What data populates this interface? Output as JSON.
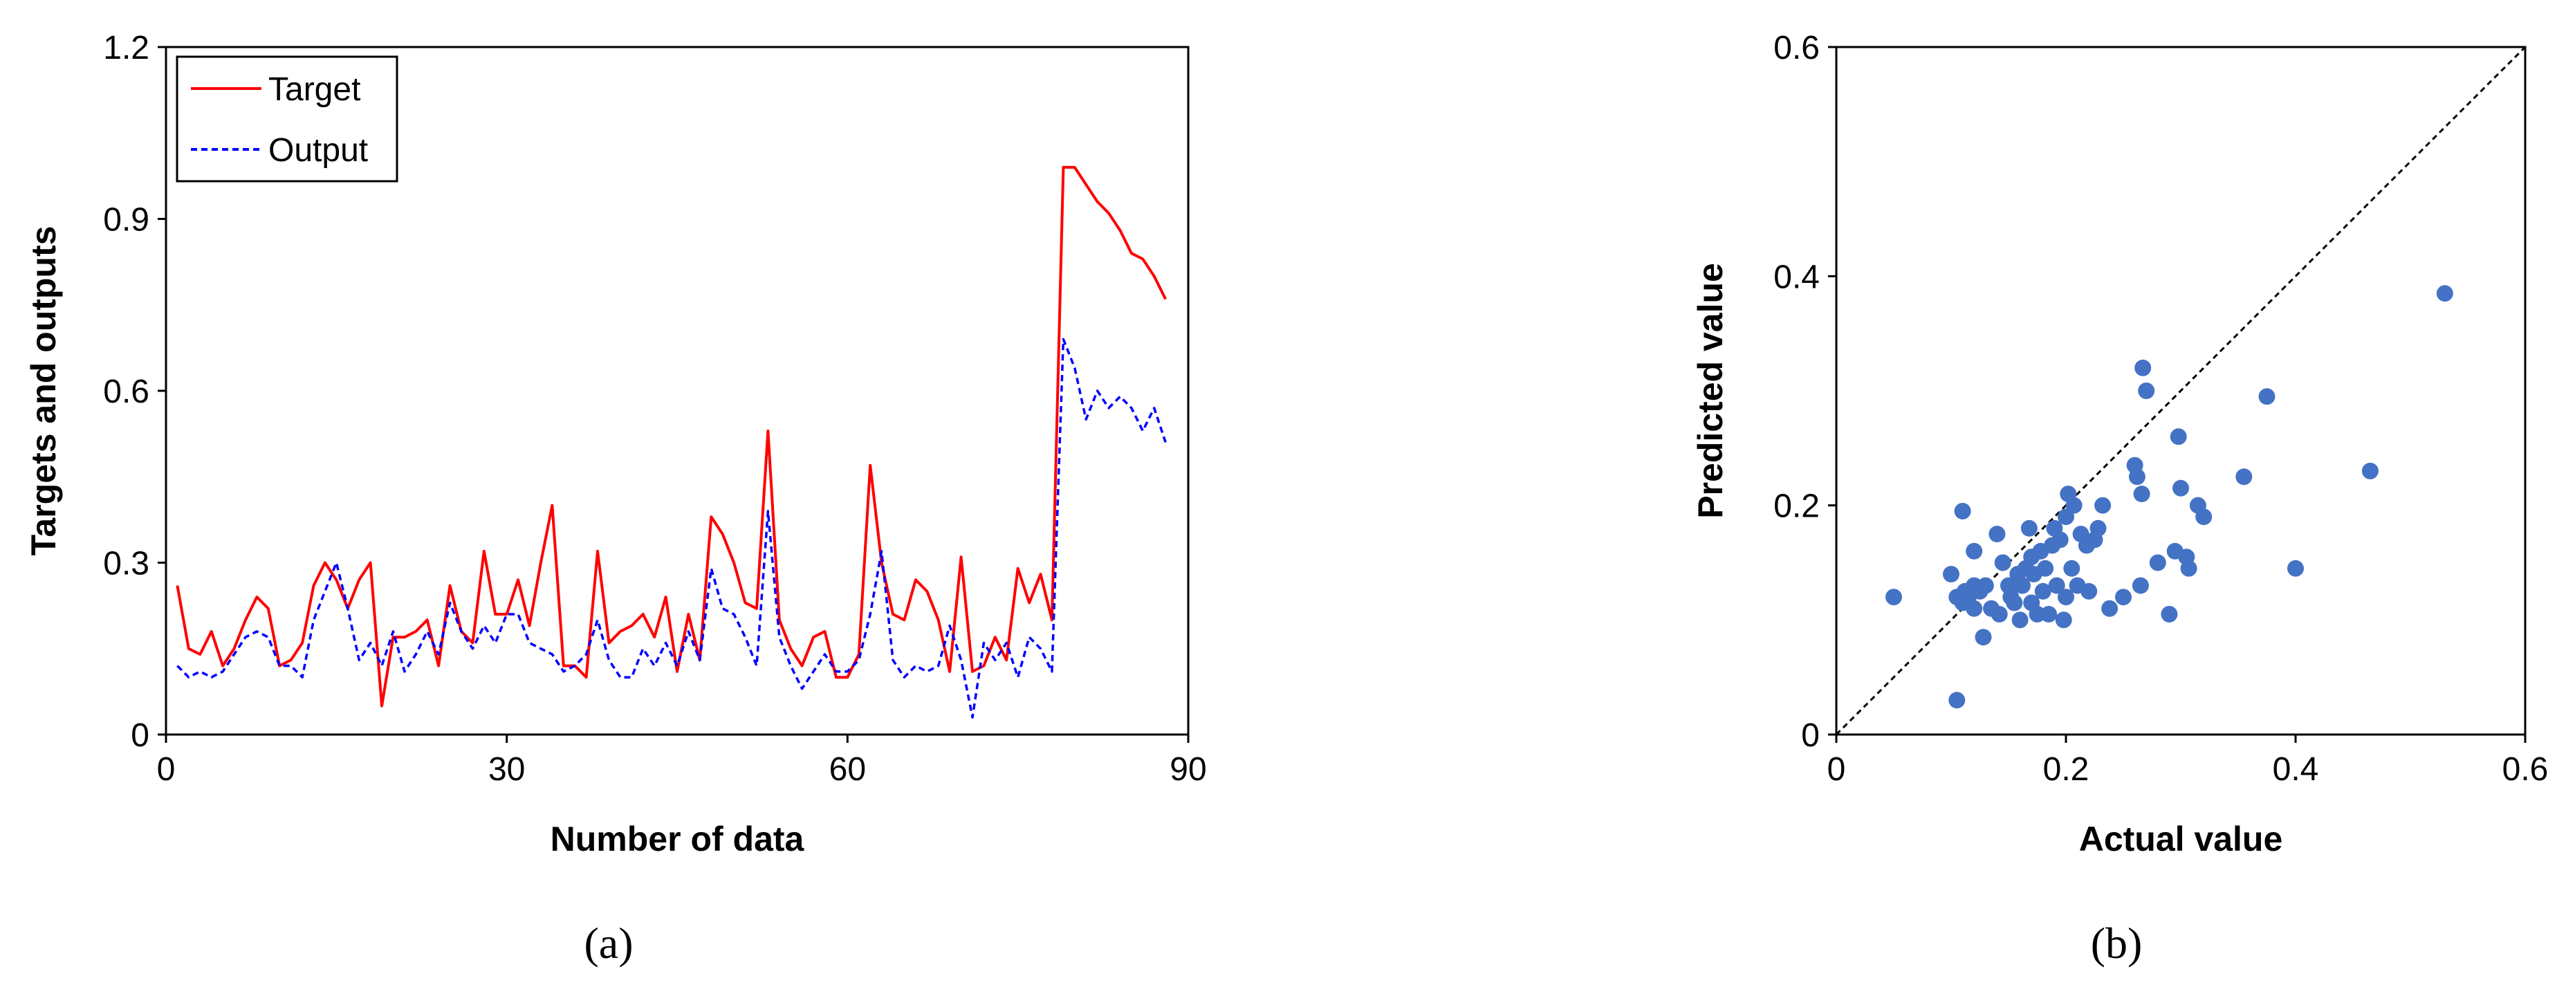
{
  "chart_data": [
    {
      "type": "line",
      "panel_label": "(a)",
      "title": "",
      "xlabel": "Number of data",
      "ylabel": "Targets and outputs",
      "xlim": [
        0,
        90
      ],
      "ylim": [
        0,
        1.2
      ],
      "xticks": [
        "0",
        "30",
        "60",
        "90"
      ],
      "yticks": [
        "0",
        "0.3",
        "0.6",
        "0.9",
        "1.2"
      ],
      "grid": false,
      "legend_position": "top-left",
      "x": [
        1,
        2,
        3,
        4,
        5,
        6,
        7,
        8,
        9,
        10,
        11,
        12,
        13,
        14,
        15,
        16,
        17,
        18,
        19,
        20,
        21,
        22,
        23,
        24,
        25,
        26,
        27,
        28,
        29,
        30,
        31,
        32,
        33,
        34,
        35,
        36,
        37,
        38,
        39,
        40,
        41,
        42,
        43,
        44,
        45,
        46,
        47,
        48,
        49,
        50,
        51,
        52,
        53,
        54,
        55,
        56,
        57,
        58,
        59,
        60,
        61,
        62,
        63,
        64,
        65,
        66,
        67,
        68,
        69,
        70,
        71,
        72,
        73,
        74,
        75,
        76,
        77,
        78,
        79,
        80,
        81,
        82,
        83,
        84,
        85,
        86,
        87,
        88
      ],
      "series": [
        {
          "name": "Target",
          "color": "#ff0000",
          "style": "solid",
          "values": [
            0.26,
            0.15,
            0.14,
            0.18,
            0.12,
            0.15,
            0.2,
            0.24,
            0.22,
            0.12,
            0.13,
            0.16,
            0.26,
            0.3,
            0.27,
            0.22,
            0.27,
            0.3,
            0.05,
            0.17,
            0.17,
            0.18,
            0.2,
            0.12,
            0.26,
            0.18,
            0.16,
            0.32,
            0.21,
            0.21,
            0.27,
            0.19,
            0.3,
            0.4,
            0.12,
            0.12,
            0.1,
            0.32,
            0.16,
            0.18,
            0.19,
            0.21,
            0.17,
            0.24,
            0.11,
            0.21,
            0.13,
            0.38,
            0.35,
            0.3,
            0.23,
            0.22,
            0.53,
            0.2,
            0.15,
            0.12,
            0.17,
            0.18,
            0.1,
            0.1,
            0.14,
            0.47,
            0.3,
            0.21,
            0.2,
            0.27,
            0.25,
            0.2,
            0.11,
            0.31,
            0.11,
            0.12,
            0.17,
            0.13,
            0.29,
            0.23,
            0.28,
            0.2,
            0.99,
            0.99,
            0.96,
            0.93,
            0.91,
            0.88,
            0.84,
            0.83,
            0.8,
            0.76
          ]
        },
        {
          "name": "Output",
          "color": "#0000ff",
          "style": "dashed",
          "values": [
            0.12,
            0.1,
            0.11,
            0.1,
            0.11,
            0.14,
            0.17,
            0.18,
            0.17,
            0.12,
            0.12,
            0.1,
            0.2,
            0.25,
            0.3,
            0.22,
            0.13,
            0.16,
            0.12,
            0.18,
            0.11,
            0.14,
            0.18,
            0.14,
            0.23,
            0.18,
            0.15,
            0.19,
            0.16,
            0.21,
            0.21,
            0.16,
            0.15,
            0.14,
            0.11,
            0.12,
            0.14,
            0.2,
            0.13,
            0.1,
            0.1,
            0.15,
            0.12,
            0.16,
            0.12,
            0.18,
            0.13,
            0.29,
            0.22,
            0.21,
            0.17,
            0.12,
            0.39,
            0.17,
            0.12,
            0.08,
            0.11,
            0.14,
            0.11,
            0.11,
            0.13,
            0.21,
            0.32,
            0.13,
            0.1,
            0.12,
            0.11,
            0.12,
            0.19,
            0.13,
            0.03,
            0.16,
            0.13,
            0.16,
            0.1,
            0.17,
            0.15,
            0.11,
            0.69,
            0.64,
            0.55,
            0.6,
            0.57,
            0.59,
            0.57,
            0.53,
            0.57,
            0.51
          ]
        }
      ]
    },
    {
      "type": "scatter",
      "panel_label": "(b)",
      "title": "",
      "xlabel": "Actual value",
      "ylabel": "Predicted value",
      "xlim": [
        0,
        0.6
      ],
      "ylim": [
        0,
        0.6
      ],
      "xticks": [
        "0",
        "0.2",
        "0.4",
        "0.6"
      ],
      "yticks": [
        "0",
        "0.2",
        "0.4",
        "0.6"
      ],
      "grid": false,
      "reference_line": "y = x (dashed black)",
      "point_color": "#4472c4",
      "points": [
        [
          0.05,
          0.12
        ],
        [
          0.1,
          0.14
        ],
        [
          0.105,
          0.03
        ],
        [
          0.105,
          0.12
        ],
        [
          0.11,
          0.195
        ],
        [
          0.11,
          0.115
        ],
        [
          0.112,
          0.125
        ],
        [
          0.115,
          0.12
        ],
        [
          0.12,
          0.13
        ],
        [
          0.12,
          0.11
        ],
        [
          0.12,
          0.16
        ],
        [
          0.125,
          0.125
        ],
        [
          0.128,
          0.085
        ],
        [
          0.13,
          0.13
        ],
        [
          0.135,
          0.11
        ],
        [
          0.14,
          0.175
        ],
        [
          0.142,
          0.105
        ],
        [
          0.145,
          0.15
        ],
        [
          0.15,
          0.13
        ],
        [
          0.152,
          0.12
        ],
        [
          0.155,
          0.115
        ],
        [
          0.158,
          0.14
        ],
        [
          0.16,
          0.1
        ],
        [
          0.162,
          0.13
        ],
        [
          0.165,
          0.145
        ],
        [
          0.168,
          0.18
        ],
        [
          0.17,
          0.155
        ],
        [
          0.17,
          0.115
        ],
        [
          0.172,
          0.14
        ],
        [
          0.175,
          0.105
        ],
        [
          0.178,
          0.16
        ],
        [
          0.18,
          0.125
        ],
        [
          0.182,
          0.145
        ],
        [
          0.185,
          0.105
        ],
        [
          0.188,
          0.165
        ],
        [
          0.19,
          0.18
        ],
        [
          0.192,
          0.13
        ],
        [
          0.195,
          0.17
        ],
        [
          0.198,
          0.1
        ],
        [
          0.2,
          0.19
        ],
        [
          0.2,
          0.12
        ],
        [
          0.202,
          0.21
        ],
        [
          0.205,
          0.145
        ],
        [
          0.207,
          0.2
        ],
        [
          0.21,
          0.13
        ],
        [
          0.213,
          0.175
        ],
        [
          0.218,
          0.165
        ],
        [
          0.22,
          0.125
        ],
        [
          0.225,
          0.17
        ],
        [
          0.228,
          0.18
        ],
        [
          0.232,
          0.2
        ],
        [
          0.238,
          0.11
        ],
        [
          0.25,
          0.12
        ],
        [
          0.26,
          0.235
        ],
        [
          0.262,
          0.225
        ],
        [
          0.265,
          0.13
        ],
        [
          0.266,
          0.21
        ],
        [
          0.267,
          0.32
        ],
        [
          0.27,
          0.3
        ],
        [
          0.28,
          0.15
        ],
        [
          0.29,
          0.105
        ],
        [
          0.295,
          0.16
        ],
        [
          0.298,
          0.26
        ],
        [
          0.3,
          0.215
        ],
        [
          0.305,
          0.155
        ],
        [
          0.307,
          0.145
        ],
        [
          0.315,
          0.2
        ],
        [
          0.32,
          0.19
        ],
        [
          0.355,
          0.225
        ],
        [
          0.375,
          0.295
        ],
        [
          0.4,
          0.145
        ],
        [
          0.465,
          0.23
        ],
        [
          0.53,
          0.385
        ]
      ]
    }
  ]
}
